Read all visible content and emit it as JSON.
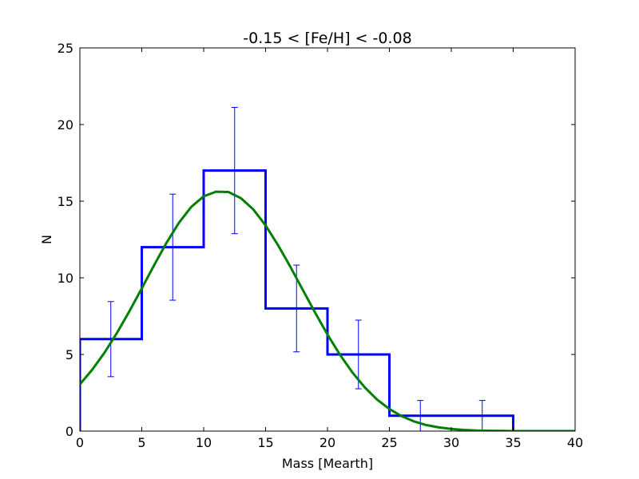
{
  "chart_data": {
    "type": "histogram",
    "title": "-0.15 < [Fe/H] < -0.08",
    "xlabel": "Mass [Mearth]",
    "ylabel": "N",
    "xlim": [
      0,
      40
    ],
    "ylim": [
      0,
      25
    ],
    "xticks": [
      0,
      5,
      10,
      15,
      20,
      25,
      30,
      35,
      40
    ],
    "yticks": [
      0,
      5,
      10,
      15,
      20,
      25
    ],
    "grid": false,
    "bins": [
      {
        "x0": 0,
        "x1": 5,
        "count": 6,
        "err_low": 2.45,
        "err_high": 2.45
      },
      {
        "x0": 5,
        "x1": 10,
        "count": 12,
        "err_low": 3.46,
        "err_high": 3.46
      },
      {
        "x0": 10,
        "x1": 15,
        "count": 17,
        "err_low": 4.12,
        "err_high": 4.12
      },
      {
        "x0": 15,
        "x1": 20,
        "count": 8,
        "err_low": 2.83,
        "err_high": 2.83
      },
      {
        "x0": 20,
        "x1": 25,
        "count": 5,
        "err_low": 2.24,
        "err_high": 2.24
      },
      {
        "x0": 25,
        "x1": 30,
        "count": 1,
        "err_low": 1.0,
        "err_high": 1.0
      },
      {
        "x0": 30,
        "x1": 35,
        "count": 1,
        "err_low": 1.0,
        "err_high": 1.0
      },
      {
        "x0": 35,
        "x1": 40,
        "count": 0,
        "err_low": 0,
        "err_high": 0
      }
    ],
    "fit_curve": {
      "x": [
        0,
        1,
        2,
        3,
        4,
        5,
        6,
        7,
        8,
        9,
        10,
        11,
        12,
        13,
        14,
        15,
        16,
        17,
        18,
        19,
        20,
        21,
        22,
        23,
        24,
        25,
        26,
        27,
        28,
        29,
        30,
        31,
        32,
        33,
        34,
        35,
        36,
        37,
        38,
        39,
        40
      ],
      "y": [
        3.05,
        4.01,
        5.13,
        6.41,
        7.82,
        9.31,
        10.83,
        12.29,
        13.59,
        14.63,
        15.32,
        15.62,
        15.6,
        15.2,
        14.47,
        13.42,
        12.14,
        10.72,
        9.22,
        7.73,
        6.3,
        4.99,
        3.84,
        2.86,
        2.06,
        1.44,
        0.97,
        0.63,
        0.39,
        0.24,
        0.14,
        0.08,
        0.04,
        0.02,
        0.01,
        0.0,
        0.0,
        0.0,
        0.0,
        0.0,
        0.0
      ]
    },
    "colors": {
      "histogram": "#0000ff",
      "errorbars": "#0000ff",
      "fit": "#008000",
      "axes": "#000000"
    }
  }
}
